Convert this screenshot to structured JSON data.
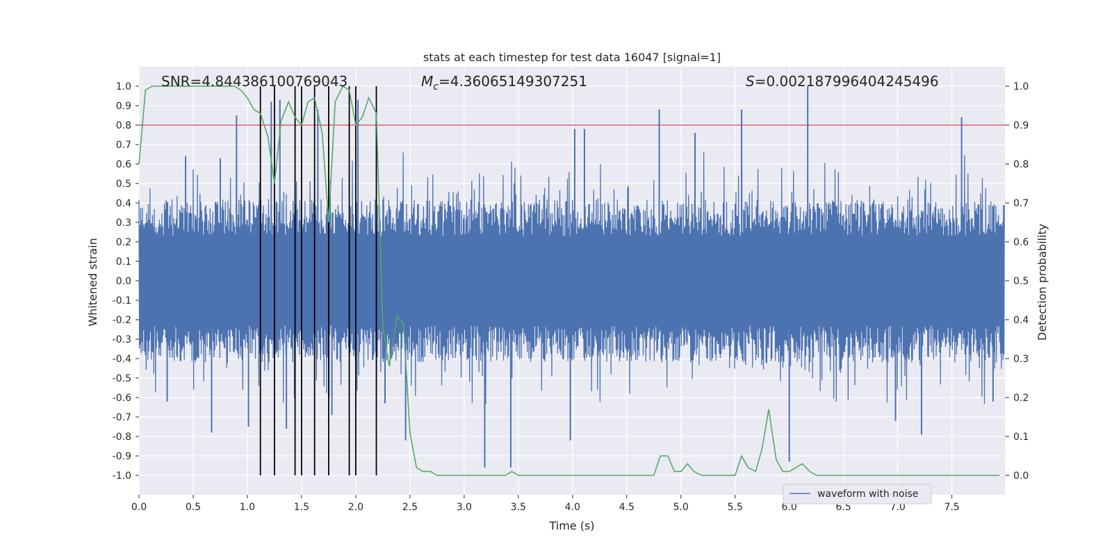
{
  "chart_data": {
    "type": "line",
    "title": "stats at each timestep for test data 16047 [signal=1]",
    "xlabel": "Time (s)",
    "ylabel": "Whitened strain",
    "y2label": "Detection probability",
    "xlim": [
      0.0,
      7.99
    ],
    "ylim": [
      -1.1,
      1.1
    ],
    "y2lim": [
      -0.05,
      1.05
    ],
    "x_ticks": [
      0.0,
      0.5,
      1.0,
      1.5,
      2.0,
      2.5,
      3.0,
      3.5,
      4.0,
      4.5,
      5.0,
      5.5,
      6.0,
      6.5,
      7.0,
      7.5
    ],
    "x_tick_labels": [
      "0.0",
      "0.5",
      "1.0",
      "1.5",
      "2.0",
      "2.5",
      "3.0",
      "3.5",
      "4.0",
      "4.5",
      "5.0",
      "5.5",
      "6.0",
      "6.5",
      "7.0",
      "7.5"
    ],
    "y_ticks": [
      1.0,
      0.9,
      0.8,
      0.7,
      0.6,
      0.5,
      0.4,
      0.3,
      0.2,
      0.1,
      0.0,
      -0.1,
      -0.2,
      -0.3,
      -0.4,
      -0.5,
      -0.6,
      -0.7,
      -0.8,
      -0.9,
      -1.0
    ],
    "y_tick_labels": [
      "1.0",
      "0.9",
      "0.8",
      "0.7",
      "0.6",
      "0.5",
      "0.4",
      "0.3",
      "0.2",
      "0.1",
      "0.0",
      "-0.1",
      "-0.2",
      "-0.3",
      "-0.4",
      "-0.5",
      "-0.6",
      "-0.7",
      "-0.8",
      "-0.9",
      "-1.0"
    ],
    "y2_ticks": [
      1.0,
      0.9,
      0.8,
      0.7,
      0.6,
      0.5,
      0.4,
      0.3,
      0.2,
      0.1,
      0.0
    ],
    "y2_tick_labels": [
      "1.0",
      "0.9",
      "0.8",
      "0.7",
      "0.6",
      "0.5",
      "0.4",
      "0.3",
      "0.2",
      "0.1",
      "0.0"
    ],
    "annotations": {
      "snr": "SNR=4.844386100769043",
      "mc_symbol": "M",
      "mc_subscript": "c",
      "mc_value": "=4.36065149307251",
      "s_symbol": "S",
      "s_value": "=0.002187996404245496"
    },
    "threshold": {
      "value": 0.9,
      "axis": "right",
      "color": "#c44e52"
    },
    "vertical_markers": {
      "x": [
        1.12,
        1.25,
        1.44,
        1.5,
        1.62,
        1.75,
        1.94,
        2.0,
        2.19
      ],
      "ymin": 0.0,
      "ymax": 1.0,
      "axis": "right",
      "color": "#000000"
    },
    "series": [
      {
        "name": "waveform with noise",
        "axis": "left",
        "color": "#4c72b0",
        "sample_rate": 256,
        "envelope_noise_level": 0.42,
        "peaks": [
          {
            "x": 0.26,
            "y": -0.62
          },
          {
            "x": 0.43,
            "y": 0.64
          },
          {
            "x": 0.67,
            "y": -0.78
          },
          {
            "x": 0.75,
            "y": 0.63
          },
          {
            "x": 0.9,
            "y": 0.85
          },
          {
            "x": 1.01,
            "y": -0.75
          },
          {
            "x": 1.22,
            "y": 0.92
          },
          {
            "x": 1.3,
            "y": 0.93
          },
          {
            "x": 1.36,
            "y": -0.76
          },
          {
            "x": 1.65,
            "y": 0.88
          },
          {
            "x": 1.78,
            "y": -0.69
          },
          {
            "x": 2.02,
            "y": 0.93
          },
          {
            "x": 2.27,
            "y": -0.63
          },
          {
            "x": 2.46,
            "y": -0.82
          },
          {
            "x": 3.19,
            "y": -0.96
          },
          {
            "x": 3.43,
            "y": -0.96
          },
          {
            "x": 3.98,
            "y": -0.82
          },
          {
            "x": 4.02,
            "y": 0.78
          },
          {
            "x": 4.11,
            "y": 0.78
          },
          {
            "x": 4.8,
            "y": 0.88
          },
          {
            "x": 5.13,
            "y": 0.76
          },
          {
            "x": 5.56,
            "y": 0.88
          },
          {
            "x": 6.0,
            "y": -0.93
          },
          {
            "x": 6.17,
            "y": 1.0
          },
          {
            "x": 6.98,
            "y": -0.72
          },
          {
            "x": 7.22,
            "y": -0.79
          },
          {
            "x": 7.59,
            "y": 0.84
          },
          {
            "x": 7.88,
            "y": -0.62
          }
        ]
      },
      {
        "name": "Detection probability",
        "axis": "right",
        "color": "#55a868",
        "x": [
          0.0,
          0.06,
          0.12,
          0.19,
          0.25,
          0.31,
          0.38,
          0.44,
          0.5,
          0.56,
          0.62,
          0.69,
          0.75,
          0.81,
          0.88,
          0.94,
          1.0,
          1.06,
          1.12,
          1.19,
          1.25,
          1.31,
          1.38,
          1.44,
          1.5,
          1.56,
          1.62,
          1.69,
          1.75,
          1.81,
          1.88,
          1.94,
          2.0,
          2.06,
          2.12,
          2.19,
          2.25,
          2.31,
          2.38,
          2.44,
          2.5,
          2.56,
          2.62,
          2.69,
          2.75,
          2.81,
          2.88,
          2.94,
          3.0,
          3.06,
          3.12,
          3.19,
          3.25,
          3.31,
          3.38,
          3.44,
          3.5,
          3.56,
          3.62,
          3.69,
          3.75,
          3.81,
          3.88,
          3.94,
          4.0,
          4.06,
          4.12,
          4.19,
          4.25,
          4.31,
          4.38,
          4.44,
          4.5,
          4.56,
          4.62,
          4.69,
          4.75,
          4.81,
          4.88,
          4.94,
          5.0,
          5.06,
          5.12,
          5.19,
          5.25,
          5.31,
          5.38,
          5.44,
          5.5,
          5.56,
          5.62,
          5.69,
          5.75,
          5.81,
          5.88,
          5.94,
          6.0,
          6.06,
          6.12,
          6.19,
          6.25,
          6.31,
          6.38,
          6.44,
          6.5,
          6.56,
          6.62,
          6.69,
          6.75,
          6.81,
          6.88,
          6.94,
          7.0,
          7.06,
          7.12,
          7.19,
          7.25,
          7.31,
          7.38,
          7.44,
          7.5,
          7.56,
          7.62,
          7.69,
          7.75,
          7.81,
          7.88,
          7.94
        ],
        "values": [
          0.8,
          0.99,
          1.0,
          1.0,
          1.0,
          1.0,
          1.0,
          1.0,
          1.0,
          1.0,
          1.0,
          1.0,
          1.0,
          1.0,
          1.0,
          0.99,
          0.97,
          0.94,
          0.93,
          0.87,
          0.75,
          0.91,
          0.96,
          0.92,
          0.9,
          0.96,
          0.97,
          0.88,
          0.65,
          0.96,
          1.0,
          0.99,
          0.9,
          0.92,
          0.97,
          0.93,
          0.38,
          0.28,
          0.41,
          0.39,
          0.11,
          0.02,
          0.01,
          0.01,
          0.0,
          0.0,
          0.0,
          0.0,
          0.0,
          0.0,
          0.0,
          0.0,
          0.0,
          0.0,
          0.0,
          0.01,
          0.0,
          0.0,
          0.0,
          0.0,
          0.0,
          0.0,
          0.0,
          0.0,
          0.0,
          0.0,
          0.0,
          0.0,
          0.0,
          0.0,
          0.0,
          0.0,
          0.0,
          0.0,
          0.0,
          0.0,
          0.0,
          0.05,
          0.05,
          0.01,
          0.01,
          0.03,
          0.01,
          0.0,
          0.0,
          0.0,
          0.0,
          0.0,
          0.0,
          0.05,
          0.02,
          0.01,
          0.07,
          0.17,
          0.04,
          0.01,
          0.01,
          0.02,
          0.03,
          0.01,
          0.0,
          0.0,
          0.0,
          0.0,
          0.0,
          0.0,
          0.0,
          0.0,
          0.0,
          0.0,
          0.0,
          0.0,
          0.0,
          0.0,
          0.0,
          0.0,
          0.0,
          0.0,
          0.0,
          0.0,
          0.0,
          0.0,
          0.0,
          0.0,
          0.0,
          0.0,
          0.0,
          0.0
        ]
      }
    ],
    "legend": {
      "entries": [
        "waveform with noise"
      ],
      "placement": "lower-right"
    }
  }
}
